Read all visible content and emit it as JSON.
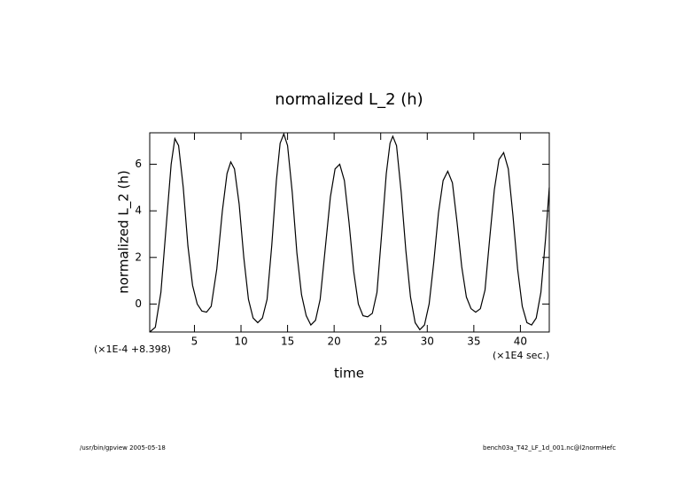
{
  "chart_data": {
    "type": "line",
    "title": "normalized L_2 (h)",
    "y_label": "normalized L_2 (h)",
    "x_label": "time",
    "x_offset_label": "(×1E-4 +8.398)",
    "x_unit_label": "(×1E4 sec.)",
    "footer_left": "/usr/bin/gpview  2005-05-18",
    "footer_right": "bench03a_T42_LF_1d_001.nc@l2normHefc",
    "xlim": [
      0.2,
      43.1
    ],
    "ylim": [
      -1.2,
      7.35
    ],
    "xticks": [
      5,
      10,
      15,
      20,
      25,
      30,
      35,
      40
    ],
    "yticks": [
      0,
      2,
      4,
      6
    ],
    "series": [
      {
        "color": "#000000",
        "x": [
          0.2,
          0.8,
          1.4,
          2.0,
          2.5,
          2.9,
          3.3,
          3.8,
          4.3,
          4.8,
          5.3,
          5.8,
          6.3,
          6.8,
          7.4,
          8.0,
          8.5,
          8.9,
          9.3,
          9.8,
          10.3,
          10.8,
          11.3,
          11.8,
          12.3,
          12.8,
          13.3,
          13.8,
          14.2,
          14.6,
          15.0,
          15.5,
          16.0,
          16.5,
          17.0,
          17.5,
          18.0,
          18.5,
          19.0,
          19.6,
          20.1,
          20.6,
          21.1,
          21.6,
          22.1,
          22.6,
          23.1,
          23.6,
          24.1,
          24.6,
          25.1,
          25.6,
          26.0,
          26.3,
          26.7,
          27.2,
          27.7,
          28.2,
          28.7,
          29.2,
          29.7,
          30.2,
          30.7,
          31.2,
          31.7,
          32.2,
          32.7,
          33.2,
          33.7,
          34.2,
          34.7,
          35.2,
          35.7,
          36.2,
          36.7,
          37.2,
          37.7,
          38.2,
          38.7,
          39.2,
          39.7,
          40.2,
          40.7,
          41.2,
          41.7,
          42.2,
          42.7,
          43.1
        ],
        "values": [
          -1.2,
          -1.0,
          0.5,
          3.5,
          6.0,
          7.1,
          6.8,
          5.0,
          2.5,
          0.8,
          0.0,
          -0.3,
          -0.35,
          -0.1,
          1.5,
          4.0,
          5.6,
          6.1,
          5.8,
          4.3,
          2.0,
          0.2,
          -0.6,
          -0.8,
          -0.6,
          0.2,
          2.5,
          5.3,
          6.9,
          7.3,
          6.8,
          4.8,
          2.2,
          0.4,
          -0.5,
          -0.9,
          -0.7,
          0.2,
          2.2,
          4.6,
          5.8,
          6.0,
          5.3,
          3.5,
          1.4,
          0.0,
          -0.5,
          -0.55,
          -0.4,
          0.5,
          3.0,
          5.6,
          6.9,
          7.2,
          6.8,
          4.8,
          2.3,
          0.3,
          -0.8,
          -1.1,
          -0.9,
          0.0,
          1.8,
          3.9,
          5.3,
          5.7,
          5.2,
          3.5,
          1.6,
          0.3,
          -0.2,
          -0.35,
          -0.2,
          0.6,
          2.8,
          4.9,
          6.2,
          6.5,
          5.8,
          3.8,
          1.5,
          -0.1,
          -0.8,
          -0.9,
          -0.6,
          0.5,
          2.8,
          5.0
        ]
      }
    ]
  }
}
